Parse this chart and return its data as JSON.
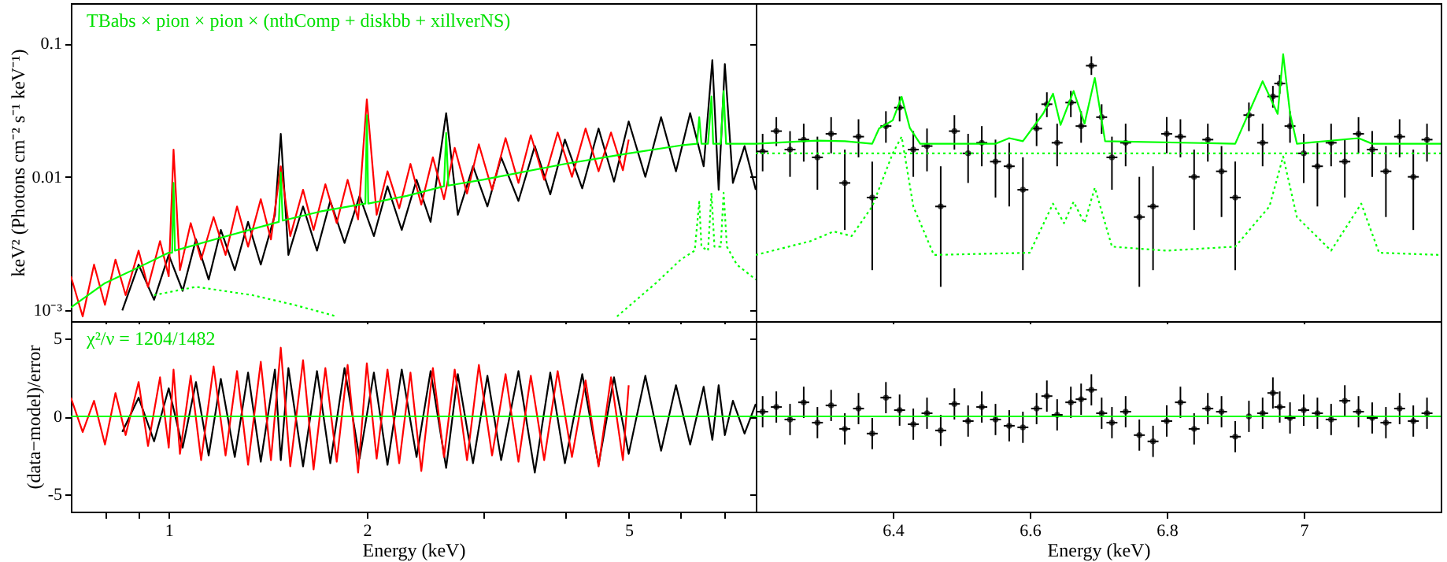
{
  "chart_data": [
    {
      "type": "line",
      "ylabel": "keV² (Photons cm⁻² s⁻¹ keV⁻¹)",
      "log": "xy",
      "tick_labels": "y",
      "xlim": [
        0.71,
        7.8
      ],
      "xticks": [
        {
          "value": 0.8,
          "label": null
        },
        {
          "value": 0.9,
          "label": null
        },
        {
          "value": 1,
          "label": null
        },
        {
          "value": 2,
          "label": null
        },
        {
          "value": 3,
          "label": null
        },
        {
          "value": 4,
          "label": null
        },
        {
          "value": 5,
          "label": null
        },
        {
          "value": 6,
          "label": null
        },
        {
          "value": 7,
          "label": null
        }
      ],
      "ylim": [
        0.00083,
        0.2
      ],
      "yticks": [
        {
          "value": 0.001,
          "label": "10⁻³"
        },
        0.01,
        0.1
      ],
      "annotations": [
        "TBabs × pion × pion × (nthComp + diskbb + xillverNS)"
      ],
      "series": [
        {
          "color": "#000000",
          "x": [
            0.85,
            0.9,
            0.95,
            1.0,
            1.05,
            1.1,
            1.15,
            1.2,
            1.26,
            1.32,
            1.38,
            1.45,
            1.48,
            1.52,
            1.6,
            1.68,
            1.76,
            1.85,
            1.95,
            2.05,
            2.15,
            2.26,
            2.38,
            2.5,
            2.64,
            2.75,
            2.9,
            3.05,
            3.2,
            3.4,
            3.6,
            3.8,
            4.0,
            4.25,
            4.5,
            4.75,
            5.0,
            5.3,
            5.6,
            5.9,
            6.2,
            6.5,
            6.7,
            6.85,
            7.0,
            7.2,
            7.5,
            7.8
          ],
          "values": [
            0.001,
            0.0022,
            0.0012,
            0.0026,
            0.0014,
            0.0034,
            0.0017,
            0.004,
            0.002,
            0.0046,
            0.0022,
            0.0052,
            0.021,
            0.0026,
            0.006,
            0.0028,
            0.0066,
            0.0032,
            0.0072,
            0.0036,
            0.0085,
            0.004,
            0.0095,
            0.0046,
            0.03,
            0.0052,
            0.012,
            0.006,
            0.014,
            0.0066,
            0.017,
            0.0074,
            0.019,
            0.0082,
            0.023,
            0.0092,
            0.026,
            0.01,
            0.028,
            0.011,
            0.03,
            0.012,
            0.075,
            0.008,
            0.07,
            0.009,
            0.017,
            0.008
          ]
        },
        {
          "color": "#ff0000",
          "x": [
            0.71,
            0.74,
            0.77,
            0.8,
            0.83,
            0.86,
            0.9,
            0.93,
            0.97,
            1.0,
            1.017,
            1.04,
            1.08,
            1.12,
            1.17,
            1.22,
            1.27,
            1.32,
            1.38,
            1.43,
            1.48,
            1.53,
            1.6,
            1.66,
            1.73,
            1.8,
            1.87,
            1.94,
            2.0,
            2.07,
            2.15,
            2.24,
            2.33,
            2.42,
            2.52,
            2.62,
            2.72,
            2.84,
            2.96,
            3.1,
            3.25,
            3.4,
            3.55,
            3.72,
            3.9,
            4.1,
            4.3,
            4.5,
            4.7,
            4.9,
            5.0
          ],
          "values": [
            0.0018,
            0.0009,
            0.0022,
            0.0011,
            0.0024,
            0.0013,
            0.0028,
            0.0015,
            0.0033,
            0.0018,
            0.016,
            0.002,
            0.0045,
            0.0024,
            0.005,
            0.0026,
            0.006,
            0.003,
            0.0068,
            0.0034,
            0.012,
            0.0036,
            0.008,
            0.004,
            0.0088,
            0.0045,
            0.0095,
            0.0048,
            0.038,
            0.0052,
            0.011,
            0.0058,
            0.0125,
            0.0062,
            0.014,
            0.0068,
            0.0165,
            0.0075,
            0.0175,
            0.008,
            0.0195,
            0.009,
            0.0205,
            0.0095,
            0.0215,
            0.01,
            0.023,
            0.011,
            0.0215,
            0.0112,
            0.019
          ]
        },
        {
          "color": "#00ff00",
          "line_style": "dotted",
          "x": [
            0.95,
            1.1,
            1.34,
            1.55,
            1.73,
            1.8
          ],
          "values": [
            0.0013,
            0.0015,
            0.0013,
            0.0011,
            0.00095,
            0.0009
          ]
        },
        {
          "color": "#00ff00",
          "line_style": "dotted",
          "x": [
            4.8,
            5.5,
            6.0,
            6.3,
            6.4,
            6.45,
            6.6,
            6.68,
            6.75,
            6.9,
            6.97,
            7.05,
            7.3,
            7.8
          ],
          "values": [
            0.0009,
            0.0016,
            0.0024,
            0.0028,
            0.0065,
            0.003,
            0.0028,
            0.0076,
            0.003,
            0.003,
            0.0076,
            0.003,
            0.0022,
            0.0017
          ]
        },
        {
          "color": "#00ff00",
          "x": [
            0.71,
            0.8,
            0.9,
            1.0,
            1.012,
            1.017,
            1.022,
            1.2,
            1.47,
            1.48,
            1.49,
            1.7,
            1.99,
            2.0,
            2.01,
            2.3,
            2.62,
            2.64,
            2.66,
            3.0,
            4.0,
            5.0,
            6.0,
            6.35,
            6.4,
            6.45,
            6.6,
            6.68,
            6.72,
            6.9,
            6.97,
            7.03,
            7.2,
            7.8
          ],
          "values": [
            0.00105,
            0.0016,
            0.0021,
            0.0027,
            0.0027,
            0.009,
            0.0028,
            0.0035,
            0.0046,
            0.0108,
            0.0047,
            0.0055,
            0.0063,
            0.029,
            0.0063,
            0.0072,
            0.0085,
            0.0213,
            0.0086,
            0.0095,
            0.0125,
            0.015,
            0.0172,
            0.0177,
            0.028,
            0.0177,
            0.0177,
            0.04,
            0.0177,
            0.0177,
            0.044,
            0.0177,
            0.0177,
            0.0177
          ]
        }
      ]
    },
    {
      "type": "line",
      "log": true,
      "tick_labels": false,
      "xlim": [
        6.2,
        7.2
      ],
      "xticks": [
        {
          "value": 6.4,
          "label": null
        },
        {
          "value": 6.6,
          "label": null
        },
        {
          "value": 6.8,
          "label": null
        },
        {
          "value": 7,
          "label": null
        }
      ],
      "ylim": [
        0.00083,
        0.2
      ],
      "yticks": [
        {
          "value": 0.001,
          "label": null
        },
        {
          "value": 0.01,
          "label": null
        },
        {
          "value": 0.1,
          "label": null
        }
      ],
      "series": [
        {
          "type": "scatter",
          "color": "#000000",
          "x": [
            6.21,
            6.23,
            6.25,
            6.27,
            6.29,
            6.31,
            6.33,
            6.35,
            6.37,
            6.39,
            6.41,
            6.43,
            6.45,
            6.47,
            6.49,
            6.51,
            6.53,
            6.55,
            6.57,
            6.59,
            6.61,
            6.625,
            6.64,
            6.66,
            6.675,
            6.69,
            6.705,
            6.72,
            6.74,
            6.76,
            6.78,
            6.8,
            6.82,
            6.84,
            6.86,
            6.88,
            6.9,
            6.92,
            6.94,
            6.955,
            6.965,
            6.98,
            7.0,
            7.02,
            7.04,
            7.06,
            7.08,
            7.1,
            7.12,
            7.14,
            7.16,
            7.18
          ],
          "values": [
            0.0155,
            0.022,
            0.016,
            0.019,
            0.014,
            0.021,
            0.009,
            0.02,
            0.007,
            0.024,
            0.033,
            0.016,
            0.017,
            0.006,
            0.022,
            0.015,
            0.018,
            0.013,
            0.012,
            0.008,
            0.023,
            0.035,
            0.018,
            0.036,
            0.024,
            0.068,
            0.028,
            0.014,
            0.018,
            0.005,
            0.006,
            0.021,
            0.02,
            0.01,
            0.019,
            0.011,
            0.007,
            0.029,
            0.018,
            0.04,
            0.05,
            0.024,
            0.015,
            0.012,
            0.018,
            0.013,
            0.021,
            0.016,
            0.011,
            0.02,
            0.01,
            0.019
          ],
          "errors": [
            [
              0.011,
              0.021
            ],
            [
              0.017,
              0.028
            ],
            [
              0.01,
              0.022
            ],
            [
              0.013,
              0.025
            ],
            [
              0.008,
              0.02
            ],
            [
              0.015,
              0.028
            ],
            [
              0.004,
              0.016
            ],
            [
              0.014,
              0.027
            ],
            [
              0.002,
              0.013
            ],
            [
              0.018,
              0.031
            ],
            [
              0.026,
              0.04
            ],
            [
              0.01,
              0.022
            ],
            [
              0.011,
              0.023
            ],
            [
              0.0015,
              0.012
            ],
            [
              0.016,
              0.029
            ],
            [
              0.009,
              0.021
            ],
            [
              0.012,
              0.024
            ],
            [
              0.007,
              0.019
            ],
            [
              0.006,
              0.018
            ],
            [
              0.002,
              0.014
            ],
            [
              0.017,
              0.03
            ],
            [
              0.028,
              0.043
            ],
            [
              0.012,
              0.025
            ],
            [
              0.028,
              0.044
            ],
            [
              0.018,
              0.031
            ],
            [
              0.058,
              0.08
            ],
            [
              0.021,
              0.035
            ],
            [
              0.008,
              0.02
            ],
            [
              0.012,
              0.025
            ],
            [
              0.0015,
              0.01
            ],
            [
              0.002,
              0.012
            ],
            [
              0.015,
              0.028
            ],
            [
              0.014,
              0.027
            ],
            [
              0.004,
              0.016
            ],
            [
              0.013,
              0.025
            ],
            [
              0.005,
              0.017
            ],
            [
              0.002,
              0.013
            ],
            [
              0.022,
              0.036
            ],
            [
              0.012,
              0.025
            ],
            [
              0.033,
              0.048
            ],
            [
              0.042,
              0.058
            ],
            [
              0.018,
              0.031
            ],
            [
              0.009,
              0.021
            ],
            [
              0.006,
              0.018
            ],
            [
              0.012,
              0.025
            ],
            [
              0.007,
              0.019
            ],
            [
              0.015,
              0.028
            ],
            [
              0.01,
              0.022
            ],
            [
              0.005,
              0.017
            ],
            [
              0.014,
              0.027
            ],
            [
              0.004,
              0.016
            ],
            [
              0.013,
              0.025
            ]
          ],
          "xerrors": [
            0.008,
            0.008,
            0.008,
            0.008,
            0.008,
            0.008,
            0.008,
            0.008,
            0.008,
            0.008,
            0.008,
            0.008,
            0.008,
            0.008,
            0.008,
            0.008,
            0.008,
            0.008,
            0.008,
            0.008,
            0.008,
            0.008,
            0.008,
            0.008,
            0.008,
            0.008,
            0.008,
            0.008,
            0.008,
            0.008,
            0.008,
            0.008,
            0.008,
            0.008,
            0.008,
            0.008,
            0.008,
            0.008,
            0.008,
            0.008,
            0.008,
            0.008,
            0.008,
            0.008,
            0.008,
            0.008,
            0.008,
            0.008,
            0.008,
            0.008,
            0.008,
            0.008
          ]
        },
        {
          "color": "#00ff00",
          "line_style": "dotted",
          "x": [
            6.2,
            7.2
          ],
          "values": [
            0.015,
            0.015
          ]
        },
        {
          "color": "#00ff00",
          "line_style": "dotted",
          "x": [
            6.2,
            6.28,
            6.314,
            6.34,
            6.37,
            6.4,
            6.413,
            6.43,
            6.46,
            6.6,
            6.634,
            6.65,
            6.664,
            6.68,
            6.695,
            6.72,
            6.8,
            6.9,
            6.95,
            6.97,
            6.99,
            7.04,
            7.084,
            7.11,
            7.2
          ],
          "values": [
            0.0026,
            0.0033,
            0.0039,
            0.0036,
            0.006,
            0.015,
            0.02,
            0.006,
            0.0026,
            0.0027,
            0.0063,
            0.0045,
            0.0065,
            0.0045,
            0.0083,
            0.003,
            0.0028,
            0.003,
            0.006,
            0.0142,
            0.005,
            0.0028,
            0.0063,
            0.0027,
            0.0026
          ]
        },
        {
          "color": "#00ff00",
          "x": [
            6.2,
            6.29,
            6.33,
            6.37,
            6.38,
            6.4,
            6.413,
            6.425,
            6.44,
            6.55,
            6.57,
            6.59,
            6.62,
            6.634,
            6.645,
            6.664,
            6.68,
            6.695,
            6.71,
            6.9,
            6.94,
            6.962,
            6.97,
            6.98,
            6.99,
            7.08,
            7.1,
            7.2
          ],
          "values": [
            0.0177,
            0.0187,
            0.0185,
            0.0177,
            0.023,
            0.0265,
            0.0398,
            0.0232,
            0.0177,
            0.0177,
            0.0195,
            0.0185,
            0.03,
            0.042,
            0.0245,
            0.044,
            0.025,
            0.055,
            0.0185,
            0.0177,
            0.052,
            0.0296,
            0.083,
            0.03,
            0.0177,
            0.0195,
            0.0177,
            0.0177
          ]
        }
      ]
    },
    {
      "type": "line",
      "xlabel": "Energy (keV)",
      "ylabel": "(data−model)/error",
      "log": "x",
      "xlim": [
        0.71,
        7.8
      ],
      "xticks": [
        {
          "value": 0.8,
          "label": null
        },
        {
          "value": 0.9,
          "label": null
        },
        1,
        2,
        {
          "value": 3,
          "label": null
        },
        {
          "value": 4,
          "label": null
        },
        5,
        {
          "value": 6,
          "label": null
        },
        {
          "value": 7,
          "label": null
        }
      ],
      "ylim": [
        -6.1,
        6.1
      ],
      "yticks": [
        -5,
        0,
        5
      ],
      "annotations": [
        "χ²/ν = 1204/1482"
      ],
      "series": [
        {
          "color": "#000000",
          "x": [
            0.85,
            0.9,
            0.95,
            1.0,
            1.05,
            1.1,
            1.15,
            1.2,
            1.26,
            1.32,
            1.38,
            1.45,
            1.48,
            1.52,
            1.6,
            1.68,
            1.76,
            1.85,
            1.95,
            2.05,
            2.15,
            2.26,
            2.38,
            2.5,
            2.64,
            2.75,
            2.9,
            3.05,
            3.2,
            3.4,
            3.6,
            3.8,
            4.0,
            4.25,
            4.5,
            4.75,
            5.0,
            5.3,
            5.6,
            5.9,
            6.2,
            6.5,
            6.7,
            6.85,
            7.0,
            7.2,
            7.5,
            7.8
          ],
          "values": [
            -1.0,
            1.2,
            -1.6,
            1.8,
            -2.0,
            2.2,
            -2.5,
            2.4,
            -2.6,
            2.8,
            -2.9,
            3.0,
            -2.8,
            3.1,
            -3.2,
            2.9,
            -3.0,
            3.1,
            -2.7,
            2.8,
            -3.1,
            3.0,
            -2.6,
            2.9,
            -3.3,
            2.7,
            -3.0,
            2.6,
            -2.8,
            2.9,
            -3.6,
            2.8,
            -3.0,
            2.7,
            -3.1,
            2.5,
            -2.4,
            2.6,
            -2.2,
            2.0,
            -1.8,
            1.9,
            -1.5,
            2.0,
            -1.2,
            1.0,
            -1.1,
            0.8
          ]
        },
        {
          "color": "#ff0000",
          "x": [
            0.71,
            0.74,
            0.77,
            0.8,
            0.83,
            0.86,
            0.9,
            0.93,
            0.97,
            1.0,
            1.017,
            1.04,
            1.08,
            1.12,
            1.17,
            1.22,
            1.27,
            1.32,
            1.38,
            1.43,
            1.48,
            1.53,
            1.6,
            1.66,
            1.73,
            1.8,
            1.87,
            1.94,
            2.0,
            2.07,
            2.15,
            2.24,
            2.33,
            2.42,
            2.52,
            2.62,
            2.72,
            2.84,
            2.96,
            3.1,
            3.25,
            3.4,
            3.55,
            3.72,
            3.9,
            4.1,
            4.3,
            4.5,
            4.7,
            4.9,
            5.0
          ],
          "values": [
            1.2,
            -1.0,
            1.0,
            -1.8,
            1.5,
            -1.2,
            2.2,
            -1.9,
            2.5,
            -2.0,
            3.0,
            -2.4,
            2.6,
            -2.8,
            3.2,
            -2.5,
            2.9,
            -3.1,
            3.5,
            -2.8,
            4.4,
            -3.2,
            3.6,
            -3.4,
            3.1,
            -2.9,
            3.3,
            -3.6,
            3.4,
            -2.7,
            3.0,
            -3.0,
            2.8,
            -3.5,
            3.1,
            -2.6,
            3.0,
            -2.8,
            3.3,
            -2.5,
            2.7,
            -2.9,
            2.6,
            -2.8,
            2.9,
            -2.6,
            2.3,
            -3.2,
            2.5,
            -2.8,
            2.0
          ]
        },
        {
          "color": "#00ff00",
          "x": [
            0.71,
            7.8
          ],
          "values": [
            0,
            0
          ]
        }
      ]
    },
    {
      "type": "line",
      "xlabel": "Energy (keV)",
      "tick_labels": "x",
      "xlim": [
        6.2,
        7.2
      ],
      "xticks": [
        6.4,
        6.6,
        6.8,
        7
      ],
      "ylim": [
        -6.1,
        6.1
      ],
      "yticks": [
        {
          "value": -5,
          "label": null
        },
        {
          "value": 0,
          "label": null
        },
        {
          "value": 5,
          "label": null
        }
      ],
      "series": [
        {
          "type": "scatter",
          "color": "#000000",
          "x": [
            6.21,
            6.23,
            6.25,
            6.27,
            6.29,
            6.31,
            6.33,
            6.35,
            6.37,
            6.39,
            6.41,
            6.43,
            6.45,
            6.47,
            6.49,
            6.51,
            6.53,
            6.55,
            6.57,
            6.59,
            6.61,
            6.625,
            6.64,
            6.66,
            6.675,
            6.69,
            6.705,
            6.72,
            6.74,
            6.76,
            6.78,
            6.8,
            6.82,
            6.84,
            6.86,
            6.88,
            6.9,
            6.92,
            6.94,
            6.955,
            6.965,
            6.98,
            7.0,
            7.02,
            7.04,
            7.06,
            7.08,
            7.1,
            7.12,
            7.14,
            7.16,
            7.18
          ],
          "values": [
            0.3,
            0.6,
            -0.2,
            0.9,
            -0.4,
            0.7,
            -0.8,
            0.5,
            -1.1,
            1.2,
            0.4,
            -0.5,
            0.2,
            -0.9,
            0.8,
            -0.3,
            0.6,
            -0.2,
            -0.6,
            -0.7,
            0.5,
            1.3,
            0.1,
            0.9,
            1.1,
            1.7,
            0.2,
            -0.4,
            0.3,
            -1.2,
            -1.6,
            -0.3,
            0.9,
            -0.8,
            0.5,
            0.3,
            -1.3,
            0.0,
            0.2,
            1.5,
            0.6,
            -0.1,
            0.4,
            0.2,
            -0.2,
            1.0,
            0.3,
            -0.1,
            -0.4,
            0.5,
            -0.3,
            0.2
          ],
          "errors": [
            1,
            1,
            1,
            1,
            1,
            1,
            1,
            1,
            1,
            1,
            1,
            1,
            1,
            1,
            1,
            1,
            1,
            1,
            1,
            1,
            1,
            1,
            1,
            1,
            1,
            1,
            1,
            1,
            1,
            1,
            1,
            1,
            1,
            1,
            1,
            1,
            1,
            1,
            1,
            1,
            1,
            1,
            1,
            1,
            1,
            1,
            1,
            1,
            1,
            1,
            1,
            1
          ],
          "xerrors": [
            0.008,
            0.008,
            0.008,
            0.008,
            0.008,
            0.008,
            0.008,
            0.008,
            0.008,
            0.008,
            0.008,
            0.008,
            0.008,
            0.008,
            0.008,
            0.008,
            0.008,
            0.008,
            0.008,
            0.008,
            0.008,
            0.008,
            0.008,
            0.008,
            0.008,
            0.008,
            0.008,
            0.008,
            0.008,
            0.008,
            0.008,
            0.008,
            0.008,
            0.008,
            0.008,
            0.008,
            0.008,
            0.008,
            0.008,
            0.008,
            0.008,
            0.008,
            0.008,
            0.008,
            0.008,
            0.008,
            0.008,
            0.008,
            0.008,
            0.008,
            0.008,
            0.008
          ]
        },
        {
          "color": "#00ff00",
          "x": [
            6.2,
            7.2
          ],
          "values": [
            0,
            0
          ]
        }
      ]
    }
  ]
}
